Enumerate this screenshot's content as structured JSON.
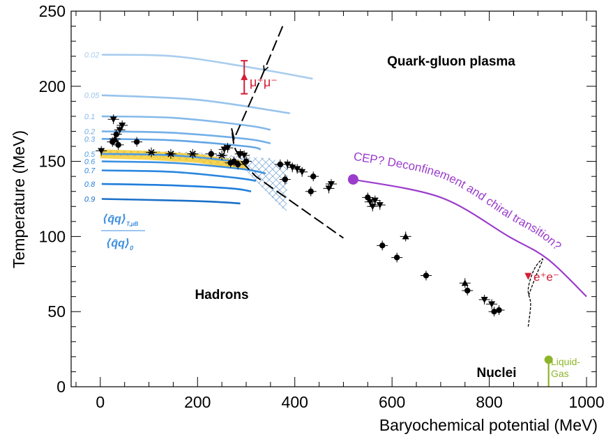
{
  "chart_data": {
    "type": "scatter",
    "xlabel": "Baryochemical potential (MeV)",
    "ylabel": "Temperature (MeV)",
    "xlim": [
      -60,
      1020
    ],
    "ylim": [
      0,
      250
    ],
    "xticks": [
      "0",
      "200",
      "400",
      "600",
      "800",
      "1000"
    ],
    "yticks": [
      "0",
      "50",
      "100",
      "150",
      "200",
      "250"
    ],
    "grid": false,
    "regions": {
      "qgp": "Quark-gluon plasma",
      "hadrons": "Hadrons",
      "nuclei": "Nuclei"
    },
    "condensate_label": {
      "numerator": "⟨q̄q⟩",
      "num_sub": "T,μB",
      "denominator": "⟨q̄q⟩",
      "den_sub": "0"
    },
    "condensate_contours": [
      {
        "label": "0.02",
        "color": "#a9cdee",
        "points": [
          [
            3,
            221
          ],
          [
            150,
            220
          ],
          [
            300,
            213
          ],
          [
            437,
            205
          ]
        ]
      },
      {
        "label": "0.05",
        "color": "#97c3ec",
        "points": [
          [
            3,
            194
          ],
          [
            200,
            191
          ],
          [
            390,
            182
          ]
        ]
      },
      {
        "label": "0.1",
        "color": "#85b9ea",
        "points": [
          [
            3,
            180
          ],
          [
            150,
            179
          ],
          [
            300,
            174
          ],
          [
            350,
            171
          ]
        ]
      },
      {
        "label": "0.2",
        "color": "#73afe8",
        "points": [
          [
            3,
            170
          ],
          [
            150,
            169
          ],
          [
            300,
            165
          ],
          [
            350,
            162
          ]
        ]
      },
      {
        "label": "0.3",
        "color": "#61a5e5",
        "points": [
          [
            3,
            165
          ],
          [
            150,
            164
          ],
          [
            300,
            160
          ],
          [
            330,
            158
          ]
        ]
      },
      {
        "label": "0.5",
        "color": "#4f9be3",
        "points": [
          [
            3,
            155
          ],
          [
            150,
            154
          ],
          [
            280,
            150
          ]
        ]
      },
      {
        "label": "0.6",
        "color": "#3d91e0",
        "points": [
          [
            3,
            150
          ],
          [
            150,
            149
          ],
          [
            290,
            145
          ],
          [
            340,
            142
          ]
        ]
      },
      {
        "label": "0.7",
        "color": "#2b87de",
        "points": [
          [
            3,
            144
          ],
          [
            150,
            143
          ],
          [
            280,
            139
          ],
          [
            320,
            137
          ]
        ]
      },
      {
        "label": "0.8",
        "color": "#1f7ddb",
        "points": [
          [
            3,
            135
          ],
          [
            150,
            134
          ],
          [
            270,
            132
          ],
          [
            310,
            130
          ]
        ]
      },
      {
        "label": "0.9",
        "color": "#1a70c8",
        "points": [
          [
            3,
            125
          ],
          [
            150,
            124
          ],
          [
            240,
            123
          ],
          [
            288,
            122
          ]
        ]
      }
    ],
    "crossover_band": [
      [
        0,
        158
      ],
      [
        100,
        157
      ],
      [
        200,
        155
      ],
      [
        300,
        150
      ],
      [
        300,
        144
      ],
      [
        200,
        149
      ],
      [
        100,
        151
      ],
      [
        0,
        152
      ]
    ],
    "hatched_region": [
      [
        0,
        157
      ],
      [
        100,
        157
      ],
      [
        200,
        156
      ],
      [
        300,
        153
      ],
      [
        355,
        152
      ],
      [
        385,
        145
      ],
      [
        383,
        117
      ],
      [
        375,
        118
      ],
      [
        300,
        144
      ],
      [
        200,
        150
      ],
      [
        100,
        153
      ],
      [
        0,
        154
      ]
    ],
    "trajectory_dashed": [
      [
        375,
        240
      ],
      [
        330,
        205
      ],
      [
        275,
        165
      ],
      [
        270,
        172
      ],
      [
        275,
        160
      ],
      [
        290,
        150
      ],
      [
        320,
        140
      ],
      [
        500,
        99
      ]
    ],
    "mumu": {
      "label": "μ⁺μ⁻",
      "x": 296,
      "y": 206,
      "yerr": [
        195,
        217
      ],
      "color": "#d41c35"
    },
    "ee": {
      "label": "e⁺e⁻",
      "x": 880,
      "y": 73,
      "color": "#d41c35"
    },
    "cep": {
      "label": "CEP? Deconfinement and chiral transition?",
      "x": 520,
      "y": 138,
      "color": "#9b3ccc"
    },
    "transition_line": [
      [
        520,
        138
      ],
      [
        700,
        126
      ],
      [
        840,
        100
      ],
      [
        920,
        85
      ],
      [
        1000,
        60
      ]
    ],
    "ee_curve": [
      [
        880,
        40
      ],
      [
        885,
        55
      ],
      [
        880,
        65
      ],
      [
        892,
        78
      ],
      [
        910,
        85
      ],
      [
        895,
        73
      ],
      [
        880,
        60
      ]
    ],
    "liquid_gas": {
      "label": "Liquid-Gas",
      "x": 922,
      "y": 18,
      "line": [
        [
          922,
          0
        ],
        [
          922,
          18
        ]
      ],
      "color": "#8db52a"
    },
    "data_points": [
      {
        "x": 2,
        "y": 157,
        "m": "down"
      },
      {
        "x": 25,
        "y": 163,
        "m": "circle"
      },
      {
        "x": 27,
        "y": 178,
        "m": "down"
      },
      {
        "x": 30,
        "y": 165,
        "m": "up"
      },
      {
        "x": 33,
        "y": 168,
        "m": "circle"
      },
      {
        "x": 37,
        "y": 161,
        "m": "circle"
      },
      {
        "x": 40,
        "y": 171,
        "m": "down"
      },
      {
        "x": 45,
        "y": 174,
        "m": "down"
      },
      {
        "x": 75,
        "y": 163,
        "m": "circle"
      },
      {
        "x": 105,
        "y": 156,
        "m": "star"
      },
      {
        "x": 145,
        "y": 155,
        "m": "star"
      },
      {
        "x": 190,
        "y": 155,
        "m": "star"
      },
      {
        "x": 228,
        "y": 155,
        "m": "circle"
      },
      {
        "x": 250,
        "y": 154,
        "m": "star"
      },
      {
        "x": 255,
        "y": 158,
        "m": "down"
      },
      {
        "x": 262,
        "y": 159,
        "m": "down"
      },
      {
        "x": 268,
        "y": 149,
        "m": "circle"
      },
      {
        "x": 275,
        "y": 150,
        "m": "circle"
      },
      {
        "x": 283,
        "y": 148,
        "m": "circle"
      },
      {
        "x": 288,
        "y": 155,
        "m": "down"
      },
      {
        "x": 296,
        "y": 154,
        "m": "down"
      },
      {
        "x": 300,
        "y": 150,
        "m": "circle"
      },
      {
        "x": 370,
        "y": 148,
        "m": "circle"
      },
      {
        "x": 380,
        "y": 138,
        "m": "circle"
      },
      {
        "x": 385,
        "y": 148,
        "m": "down"
      },
      {
        "x": 395,
        "y": 146,
        "m": "down"
      },
      {
        "x": 405,
        "y": 145,
        "m": "down"
      },
      {
        "x": 415,
        "y": 143,
        "m": "down"
      },
      {
        "x": 438,
        "y": 140,
        "m": "circle"
      },
      {
        "x": 433,
        "y": 130,
        "m": "circle"
      },
      {
        "x": 470,
        "y": 132,
        "m": "down"
      },
      {
        "x": 475,
        "y": 135,
        "m": "down"
      },
      {
        "x": 550,
        "y": 126,
        "m": "circle"
      },
      {
        "x": 555,
        "y": 123,
        "m": "down"
      },
      {
        "x": 560,
        "y": 120,
        "m": "down"
      },
      {
        "x": 565,
        "y": 124,
        "m": "down"
      },
      {
        "x": 575,
        "y": 121,
        "m": "down"
      },
      {
        "x": 580,
        "y": 94,
        "m": "circle"
      },
      {
        "x": 610,
        "y": 86,
        "m": "circle"
      },
      {
        "x": 628,
        "y": 100,
        "m": "up"
      },
      {
        "x": 670,
        "y": 74,
        "m": "circle"
      },
      {
        "x": 750,
        "y": 69,
        "m": "up"
      },
      {
        "x": 755,
        "y": 64,
        "m": "circle"
      },
      {
        "x": 790,
        "y": 58,
        "m": "down"
      },
      {
        "x": 805,
        "y": 55,
        "m": "down"
      },
      {
        "x": 810,
        "y": 50,
        "m": "circle"
      },
      {
        "x": 820,
        "y": 51,
        "m": "circle"
      }
    ]
  }
}
